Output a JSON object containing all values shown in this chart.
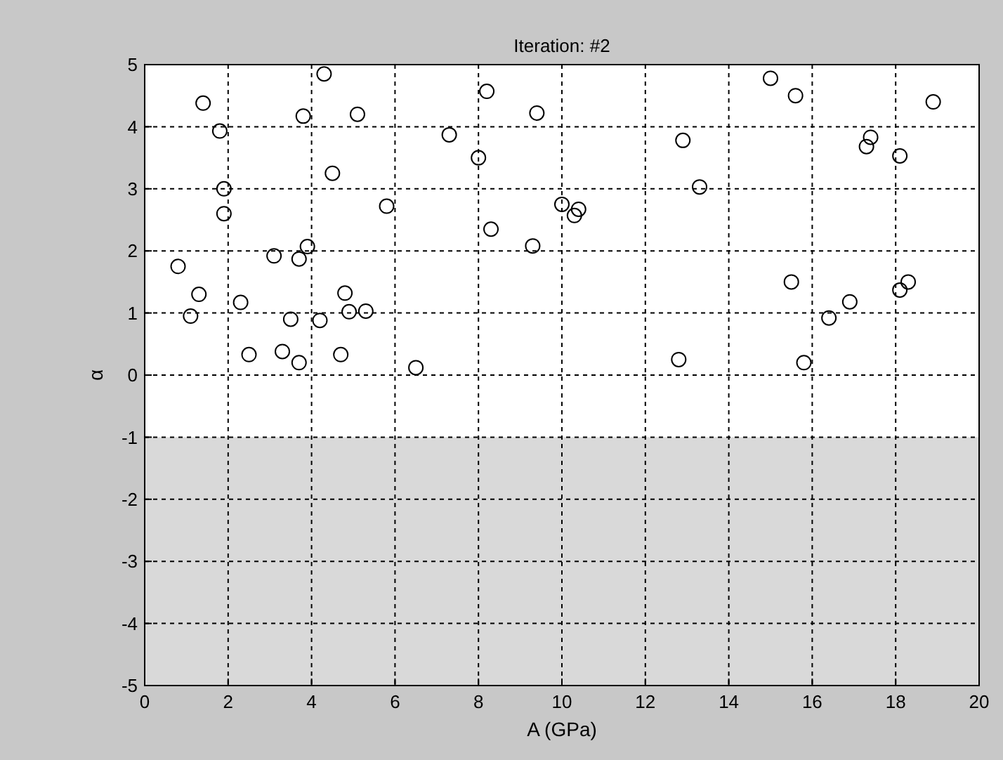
{
  "chart_data": {
    "type": "scatter",
    "title": "Iteration: #2",
    "xlabel": "A (GPa)",
    "ylabel": "α",
    "x": [
      0.8,
      1.1,
      1.3,
      1.4,
      1.8,
      1.9,
      1.9,
      2.3,
      2.5,
      3.1,
      3.3,
      3.5,
      3.7,
      3.7,
      3.8,
      3.9,
      4.2,
      4.3,
      4.5,
      4.7,
      4.8,
      4.9,
      5.1,
      5.3,
      5.8,
      6.5,
      7.3,
      8.0,
      8.2,
      8.3,
      9.3,
      9.4,
      10.0,
      10.3,
      10.4,
      12.8,
      12.9,
      13.3,
      15.0,
      15.5,
      15.6,
      15.8,
      16.4,
      16.9,
      17.3,
      17.4,
      18.1,
      18.1,
      18.3,
      18.9
    ],
    "series": [
      {
        "color": "#000000",
        "values": [
          1.75,
          0.95,
          1.3,
          4.38,
          3.93,
          3.0,
          2.6,
          1.17,
          0.33,
          1.92,
          0.38,
          0.9,
          1.87,
          0.2,
          4.17,
          2.07,
          0.88,
          4.85,
          3.25,
          0.33,
          1.32,
          1.02,
          4.2,
          1.03,
          2.72,
          0.12,
          3.87,
          3.5,
          4.57,
          2.35,
          2.08,
          4.22,
          2.75,
          2.57,
          2.67,
          0.25,
          3.78,
          3.03,
          4.78,
          1.5,
          4.5,
          0.2,
          0.92,
          1.18,
          3.68,
          3.83,
          3.53,
          1.37,
          1.5,
          4.4
        ]
      }
    ],
    "xlim": [
      0,
      20
    ],
    "xticks": [
      0,
      2,
      4,
      6,
      8,
      10,
      12,
      14,
      16,
      18,
      20
    ],
    "ylim": [
      -5,
      5
    ],
    "yticks": [
      -5,
      -4,
      -3,
      -2,
      -1,
      0,
      1,
      2,
      3,
      4,
      5
    ],
    "bands": [
      {
        "axis": "y",
        "from": -5,
        "to": -1,
        "color": "#d9d9d9"
      }
    ],
    "grid": true,
    "line_style": "dashed",
    "marker": "circle"
  }
}
